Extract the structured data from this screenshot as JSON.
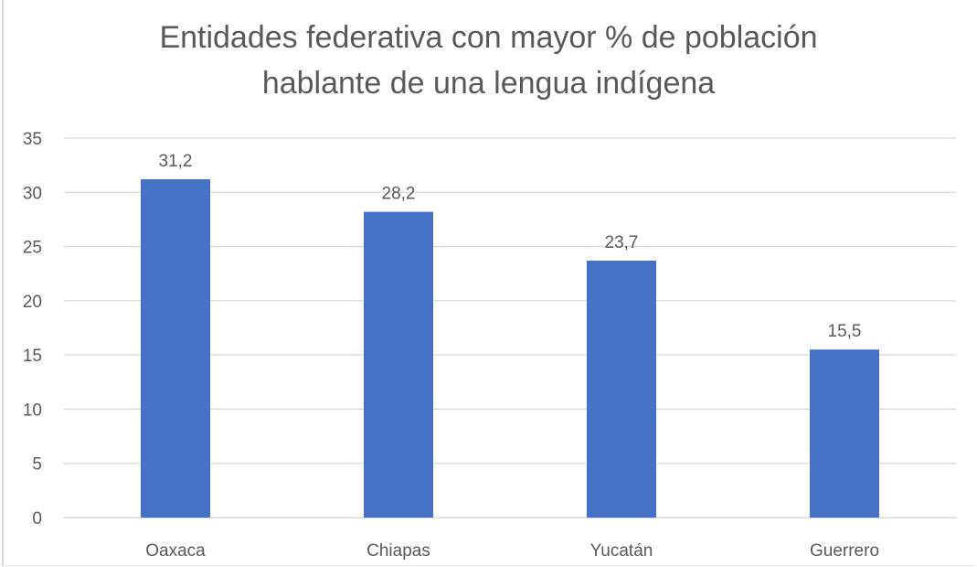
{
  "chart_data": {
    "type": "bar",
    "title_lines": [
      "Entidades federativa con mayor % de población",
      "hablante de una lengua indígena"
    ],
    "categories": [
      "Oaxaca",
      "Chiapas",
      "Yucatán",
      "Guerrero"
    ],
    "values": [
      31.2,
      28.2,
      23.7,
      15.5
    ],
    "data_labels": [
      "31,2",
      "28,2",
      "23,7",
      "15,5"
    ],
    "xlabel": "",
    "ylabel": "",
    "ylim": [
      0,
      35
    ],
    "yticks": [
      0,
      5,
      10,
      15,
      20,
      25,
      30,
      35
    ],
    "grid": true,
    "legend": "none",
    "bar_color": "#4472C4"
  }
}
